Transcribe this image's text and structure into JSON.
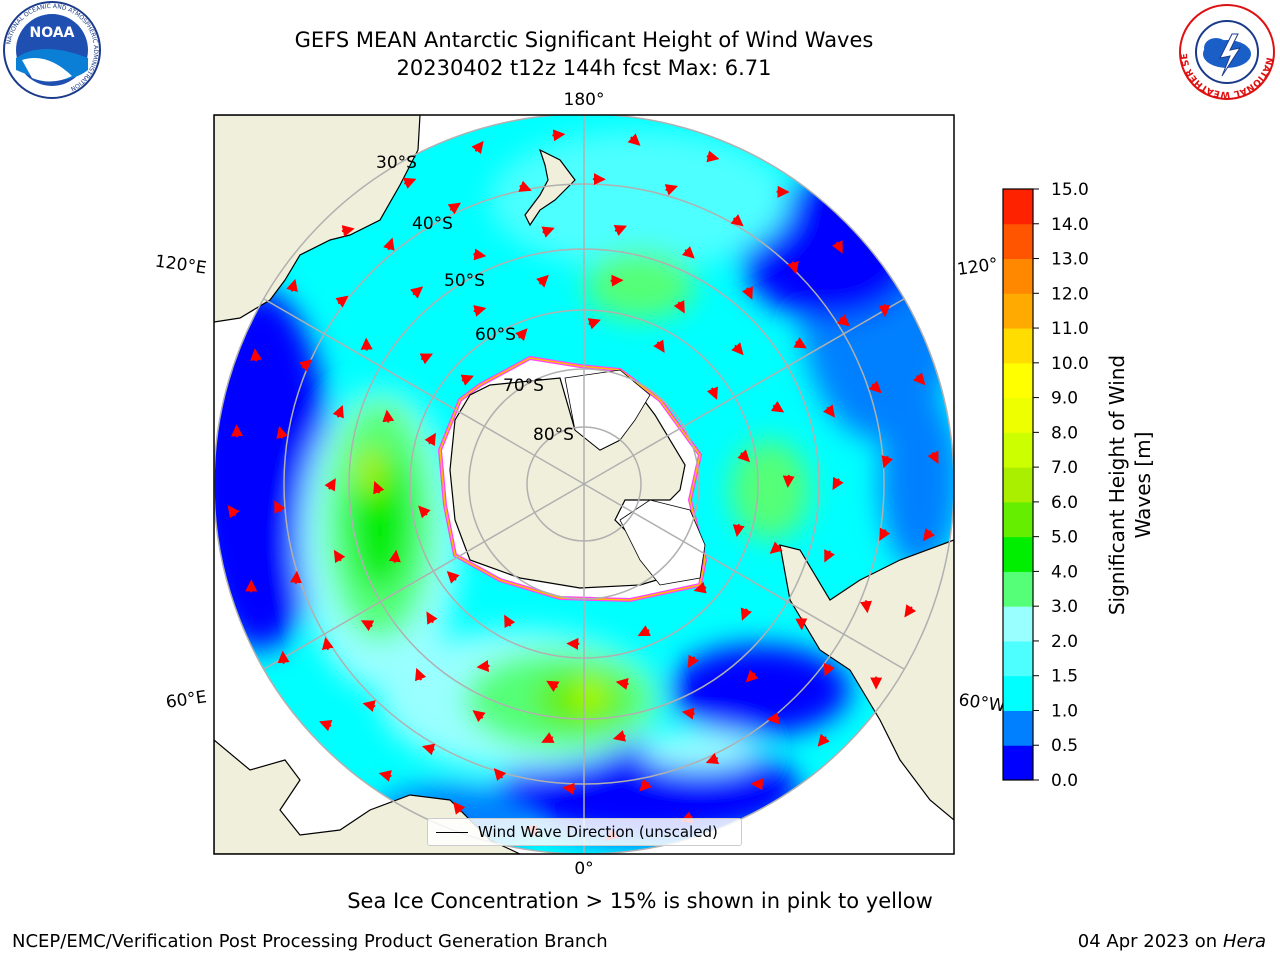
{
  "header": {
    "title": "GEFS MEAN Antarctic Significant Height of Wind Waves",
    "subtitle": "20230402 t12z 144h fcst   Max: 6.71"
  },
  "map": {
    "projection": "south-polar-stereographic",
    "lon_labels": [
      "180°",
      "120°E",
      "120°",
      "60°E",
      "60°W",
      "0°"
    ],
    "lat_labels": [
      "30°S",
      "40°S",
      "50°S",
      "60°S",
      "70°S",
      "80°S"
    ],
    "legend_label": "Wind Wave Direction (unscaled)",
    "arrow_color": "#ff0000",
    "land_color": "#efefdb",
    "ocean_base_color": "#00ffff"
  },
  "colorbar": {
    "label": "Significant Height of Wind Waves [m]",
    "ticks": [
      "0.0",
      "0.5",
      "1.0",
      "1.5",
      "2.0",
      "3.0",
      "4.0",
      "5.0",
      "6.0",
      "7.0",
      "8.0",
      "9.0",
      "10.0",
      "11.0",
      "12.0",
      "13.0",
      "14.0",
      "15.0"
    ],
    "colors": [
      "#0000ff",
      "#0080ff",
      "#00ffff",
      "#4dffff",
      "#99ffff",
      "#55ff77",
      "#00ee00",
      "#66ee00",
      "#aaee00",
      "#ccff00",
      "#eeff00",
      "#ffff00",
      "#ffdd00",
      "#ffaa00",
      "#ff8800",
      "#ff5500",
      "#ff2200"
    ]
  },
  "notes": {
    "sea_ice": "Sea Ice Concentration > 15% is shown in pink to yellow"
  },
  "footer": {
    "left": "NCEP/EMC/Verification Post Processing Product Generation Branch",
    "date": "04 Apr 2023 on",
    "machine": "Hera"
  },
  "logos": {
    "noaa_text": "NOAA",
    "noaa_ring": "NATIONAL OCEANIC AND ATMOSPHERIC ADMINISTRATION",
    "noaa_ring_bottom": "U.S. DEPARTMENT OF COMMERCE",
    "nws_ring": "NATIONAL WEATHER SERVICE"
  }
}
